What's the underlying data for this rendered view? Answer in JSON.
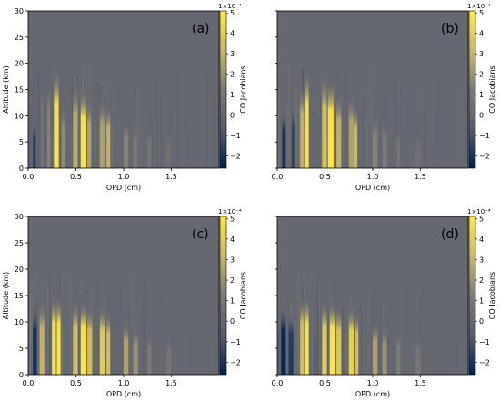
{
  "chart_data": [
    {
      "type": "heatmap",
      "panel_label": "(a)",
      "xlabel": "OPD (cm)",
      "ylabel": "Altitude (km)",
      "x_ticks": [
        "0.0",
        "0.5",
        "1.0",
        "1.5"
      ],
      "y_ticks": [
        "0",
        "5",
        "10",
        "15",
        "20",
        "25",
        "30"
      ],
      "xlim": [
        0,
        2.0
      ],
      "ylim": [
        0,
        30
      ],
      "colorbar": {
        "label": "CO Jacobians",
        "multiplier": "1×10⁻⁴",
        "ticks": [
          "5",
          "4",
          "3",
          "2",
          "1",
          "0",
          "−1",
          "−2"
        ],
        "range": [
          -2.6,
          5.1
        ],
        "colormap": [
          "#00204d",
          "#575c6d",
          "#7c7b78",
          "#c9b869",
          "#ffe945"
        ]
      },
      "bands": [
        {
          "x": 0.05,
          "w": 0.03,
          "top": 9,
          "value": -1.8
        },
        {
          "x": 0.2,
          "w": 0.03,
          "top": 17,
          "value": 1.5
        },
        {
          "x": 0.27,
          "w": 0.05,
          "top": 19,
          "value": 5.0
        },
        {
          "x": 0.35,
          "w": 0.04,
          "top": 12,
          "value": 1.8
        },
        {
          "x": 0.47,
          "w": 0.05,
          "top": 16,
          "value": 2.8
        },
        {
          "x": 0.55,
          "w": 0.06,
          "top": 15,
          "value": 5.0
        },
        {
          "x": 0.62,
          "w": 0.04,
          "top": 13,
          "value": 2.5
        },
        {
          "x": 0.75,
          "w": 0.05,
          "top": 13,
          "value": 2.5
        },
        {
          "x": 0.82,
          "w": 0.04,
          "top": 12,
          "value": 3.0
        },
        {
          "x": 1.0,
          "w": 0.05,
          "top": 9,
          "value": 1.5
        },
        {
          "x": 1.1,
          "w": 0.04,
          "top": 8,
          "value": 1.2
        },
        {
          "x": 1.25,
          "w": 0.04,
          "top": 8,
          "value": 0.8
        },
        {
          "x": 1.45,
          "w": 0.05,
          "top": 7,
          "value": 0.6
        }
      ]
    },
    {
      "type": "heatmap",
      "panel_label": "(b)",
      "xlabel": "OPD (cm)",
      "ylabel": "",
      "x_ticks": [
        "0.0",
        "0.5",
        "1.0",
        "1.5"
      ],
      "y_ticks": [],
      "xlim": [
        0,
        2.0
      ],
      "ylim": [
        0,
        30
      ],
      "colorbar": {
        "label": "CO Jacobians",
        "multiplier": "1×10⁻⁴",
        "ticks": [
          "5",
          "4",
          "3",
          "2",
          "1",
          "0",
          "−1",
          "−2"
        ],
        "range": [
          -2.6,
          5.1
        ],
        "colormap": [
          "#00204d",
          "#575c6d",
          "#7c7b78",
          "#c9b869",
          "#ffe945"
        ]
      },
      "bands": [
        {
          "x": 0.05,
          "w": 0.04,
          "top": 11,
          "value": -2.0
        },
        {
          "x": 0.15,
          "w": 0.04,
          "top": 12,
          "value": -1.5
        },
        {
          "x": 0.24,
          "w": 0.04,
          "top": 16,
          "value": 3.0
        },
        {
          "x": 0.29,
          "w": 0.04,
          "top": 19,
          "value": 5.0
        },
        {
          "x": 0.47,
          "w": 0.05,
          "top": 18,
          "value": 3.5
        },
        {
          "x": 0.53,
          "w": 0.06,
          "top": 17,
          "value": 5.0
        },
        {
          "x": 0.62,
          "w": 0.05,
          "top": 14,
          "value": 3.0
        },
        {
          "x": 0.75,
          "w": 0.05,
          "top": 14,
          "value": 2.5
        },
        {
          "x": 0.8,
          "w": 0.04,
          "top": 12,
          "value": 3.2
        },
        {
          "x": 1.0,
          "w": 0.05,
          "top": 10,
          "value": 1.5
        },
        {
          "x": 1.1,
          "w": 0.05,
          "top": 9,
          "value": 1.2
        },
        {
          "x": 1.25,
          "w": 0.04,
          "top": 8,
          "value": 0.9
        },
        {
          "x": 1.45,
          "w": 0.05,
          "top": 7,
          "value": 0.6
        }
      ]
    },
    {
      "type": "heatmap",
      "panel_label": "(c)",
      "xlabel": "OPD (cm)",
      "ylabel": "Altitude (km)",
      "x_ticks": [
        "0.0",
        "0.5",
        "1.0",
        "1.5"
      ],
      "y_ticks": [
        "0",
        "5",
        "10",
        "15",
        "20",
        "25",
        "30"
      ],
      "xlim": [
        0,
        2.0
      ],
      "ylim": [
        0,
        30
      ],
      "colorbar": {
        "label": "CO Jacobians",
        "multiplier": "1×10⁻⁴",
        "ticks": [
          "5",
          "4",
          "3",
          "2",
          "1",
          "0",
          "−1",
          "−2"
        ],
        "range": [
          -2.6,
          5.1
        ],
        "colormap": [
          "#00204d",
          "#575c6d",
          "#7c7b78",
          "#c9b869",
          "#ffe945"
        ]
      },
      "bands": [
        {
          "x": 0.05,
          "w": 0.04,
          "top": 13,
          "value": -2.2
        },
        {
          "x": 0.12,
          "w": 0.05,
          "top": 14,
          "value": 3.0
        },
        {
          "x": 0.25,
          "w": 0.04,
          "top": 15,
          "value": 5.0
        },
        {
          "x": 0.3,
          "w": 0.04,
          "top": 15,
          "value": 5.0
        },
        {
          "x": 0.47,
          "w": 0.05,
          "top": 14,
          "value": 3.5
        },
        {
          "x": 0.55,
          "w": 0.06,
          "top": 14,
          "value": 5.0
        },
        {
          "x": 0.62,
          "w": 0.05,
          "top": 13,
          "value": 3.5
        },
        {
          "x": 0.75,
          "w": 0.05,
          "top": 13,
          "value": 4.0
        },
        {
          "x": 0.82,
          "w": 0.04,
          "top": 12,
          "value": 3.5
        },
        {
          "x": 1.0,
          "w": 0.05,
          "top": 10,
          "value": 2.5
        },
        {
          "x": 1.1,
          "w": 0.05,
          "top": 9,
          "value": 2.0
        },
        {
          "x": 1.25,
          "w": 0.04,
          "top": 8,
          "value": 1.2
        },
        {
          "x": 1.45,
          "w": 0.05,
          "top": 7,
          "value": 0.9
        }
      ]
    },
    {
      "type": "heatmap",
      "panel_label": "(d)",
      "xlabel": "OPD (cm)",
      "ylabel": "",
      "x_ticks": [
        "0.0",
        "0.5",
        "1.0",
        "1.5"
      ],
      "y_ticks": [],
      "xlim": [
        0,
        2.0
      ],
      "ylim": [
        0,
        30
      ],
      "colorbar": {
        "label": "CO Jacobians",
        "multiplier": "1×10⁻⁴",
        "ticks": [
          "5",
          "4",
          "3",
          "2",
          "1",
          "0",
          "−1",
          "−2"
        ],
        "range": [
          -2.6,
          5.1
        ],
        "colormap": [
          "#00204d",
          "#575c6d",
          "#7c7b78",
          "#c9b869",
          "#ffe945"
        ]
      },
      "bands": [
        {
          "x": 0.04,
          "w": 0.05,
          "top": 13,
          "value": -2.4
        },
        {
          "x": 0.12,
          "w": 0.05,
          "top": 12,
          "value": -1.8
        },
        {
          "x": 0.24,
          "w": 0.04,
          "top": 15,
          "value": 3.5
        },
        {
          "x": 0.29,
          "w": 0.04,
          "top": 15,
          "value": 5.0
        },
        {
          "x": 0.47,
          "w": 0.05,
          "top": 14,
          "value": 4.0
        },
        {
          "x": 0.55,
          "w": 0.06,
          "top": 14,
          "value": 5.0
        },
        {
          "x": 0.62,
          "w": 0.05,
          "top": 13,
          "value": 3.8
        },
        {
          "x": 0.75,
          "w": 0.05,
          "top": 13,
          "value": 4.2
        },
        {
          "x": 0.81,
          "w": 0.04,
          "top": 12,
          "value": 3.5
        },
        {
          "x": 1.0,
          "w": 0.05,
          "top": 10,
          "value": 2.5
        },
        {
          "x": 1.1,
          "w": 0.05,
          "top": 9,
          "value": 2.0
        },
        {
          "x": 1.25,
          "w": 0.04,
          "top": 8,
          "value": 1.3
        },
        {
          "x": 1.45,
          "w": 0.05,
          "top": 7,
          "value": 1.0
        }
      ]
    }
  ]
}
